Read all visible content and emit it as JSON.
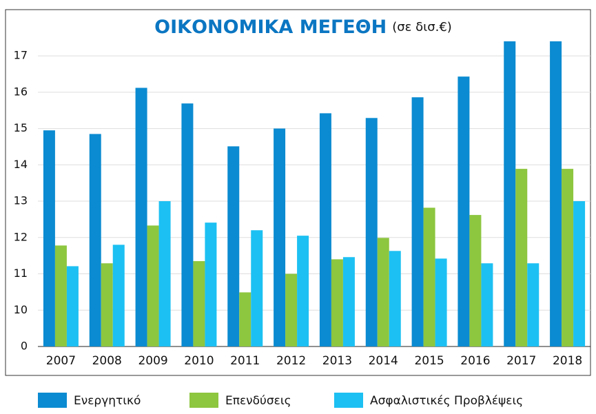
{
  "chart_data": {
    "type": "bar",
    "title": "ΟΙΚΟΝΟΜΙΚΑ ΜΕΓΕΘΗ",
    "subtitle": "(σε δισ.€)",
    "categories": [
      "2007",
      "2008",
      "2009",
      "2010",
      "2011",
      "2012",
      "2013",
      "2014",
      "2015",
      "2016",
      "2017",
      "2018"
    ],
    "series": [
      {
        "name": "Ενεργητικό",
        "color": "#0b8bd1",
        "values": [
          14.95,
          14.85,
          16.12,
          15.69,
          14.51,
          15.0,
          15.42,
          15.29,
          15.86,
          16.43,
          17.4,
          17.4
        ]
      },
      {
        "name": "Επενδύσεις",
        "color": "#8dc63f",
        "values": [
          11.78,
          11.29,
          12.33,
          11.35,
          10.49,
          11.0,
          11.4,
          11.99,
          12.82,
          12.62,
          13.89,
          13.89
        ]
      },
      {
        "name": "Ασφαλιστικές Προβλέψεις",
        "color": "#1cc0f2",
        "values": [
          11.21,
          11.8,
          13.0,
          12.41,
          12.2,
          12.05,
          11.46,
          11.63,
          11.42,
          11.29,
          11.29,
          13.0
        ]
      }
    ],
    "ylim": [
      0,
      17.4
    ],
    "yticks": [
      0,
      10,
      11,
      12,
      13,
      14,
      15,
      16,
      17
    ],
    "axis_break": [
      0,
      10
    ],
    "grid": true,
    "legend": "bottom"
  }
}
